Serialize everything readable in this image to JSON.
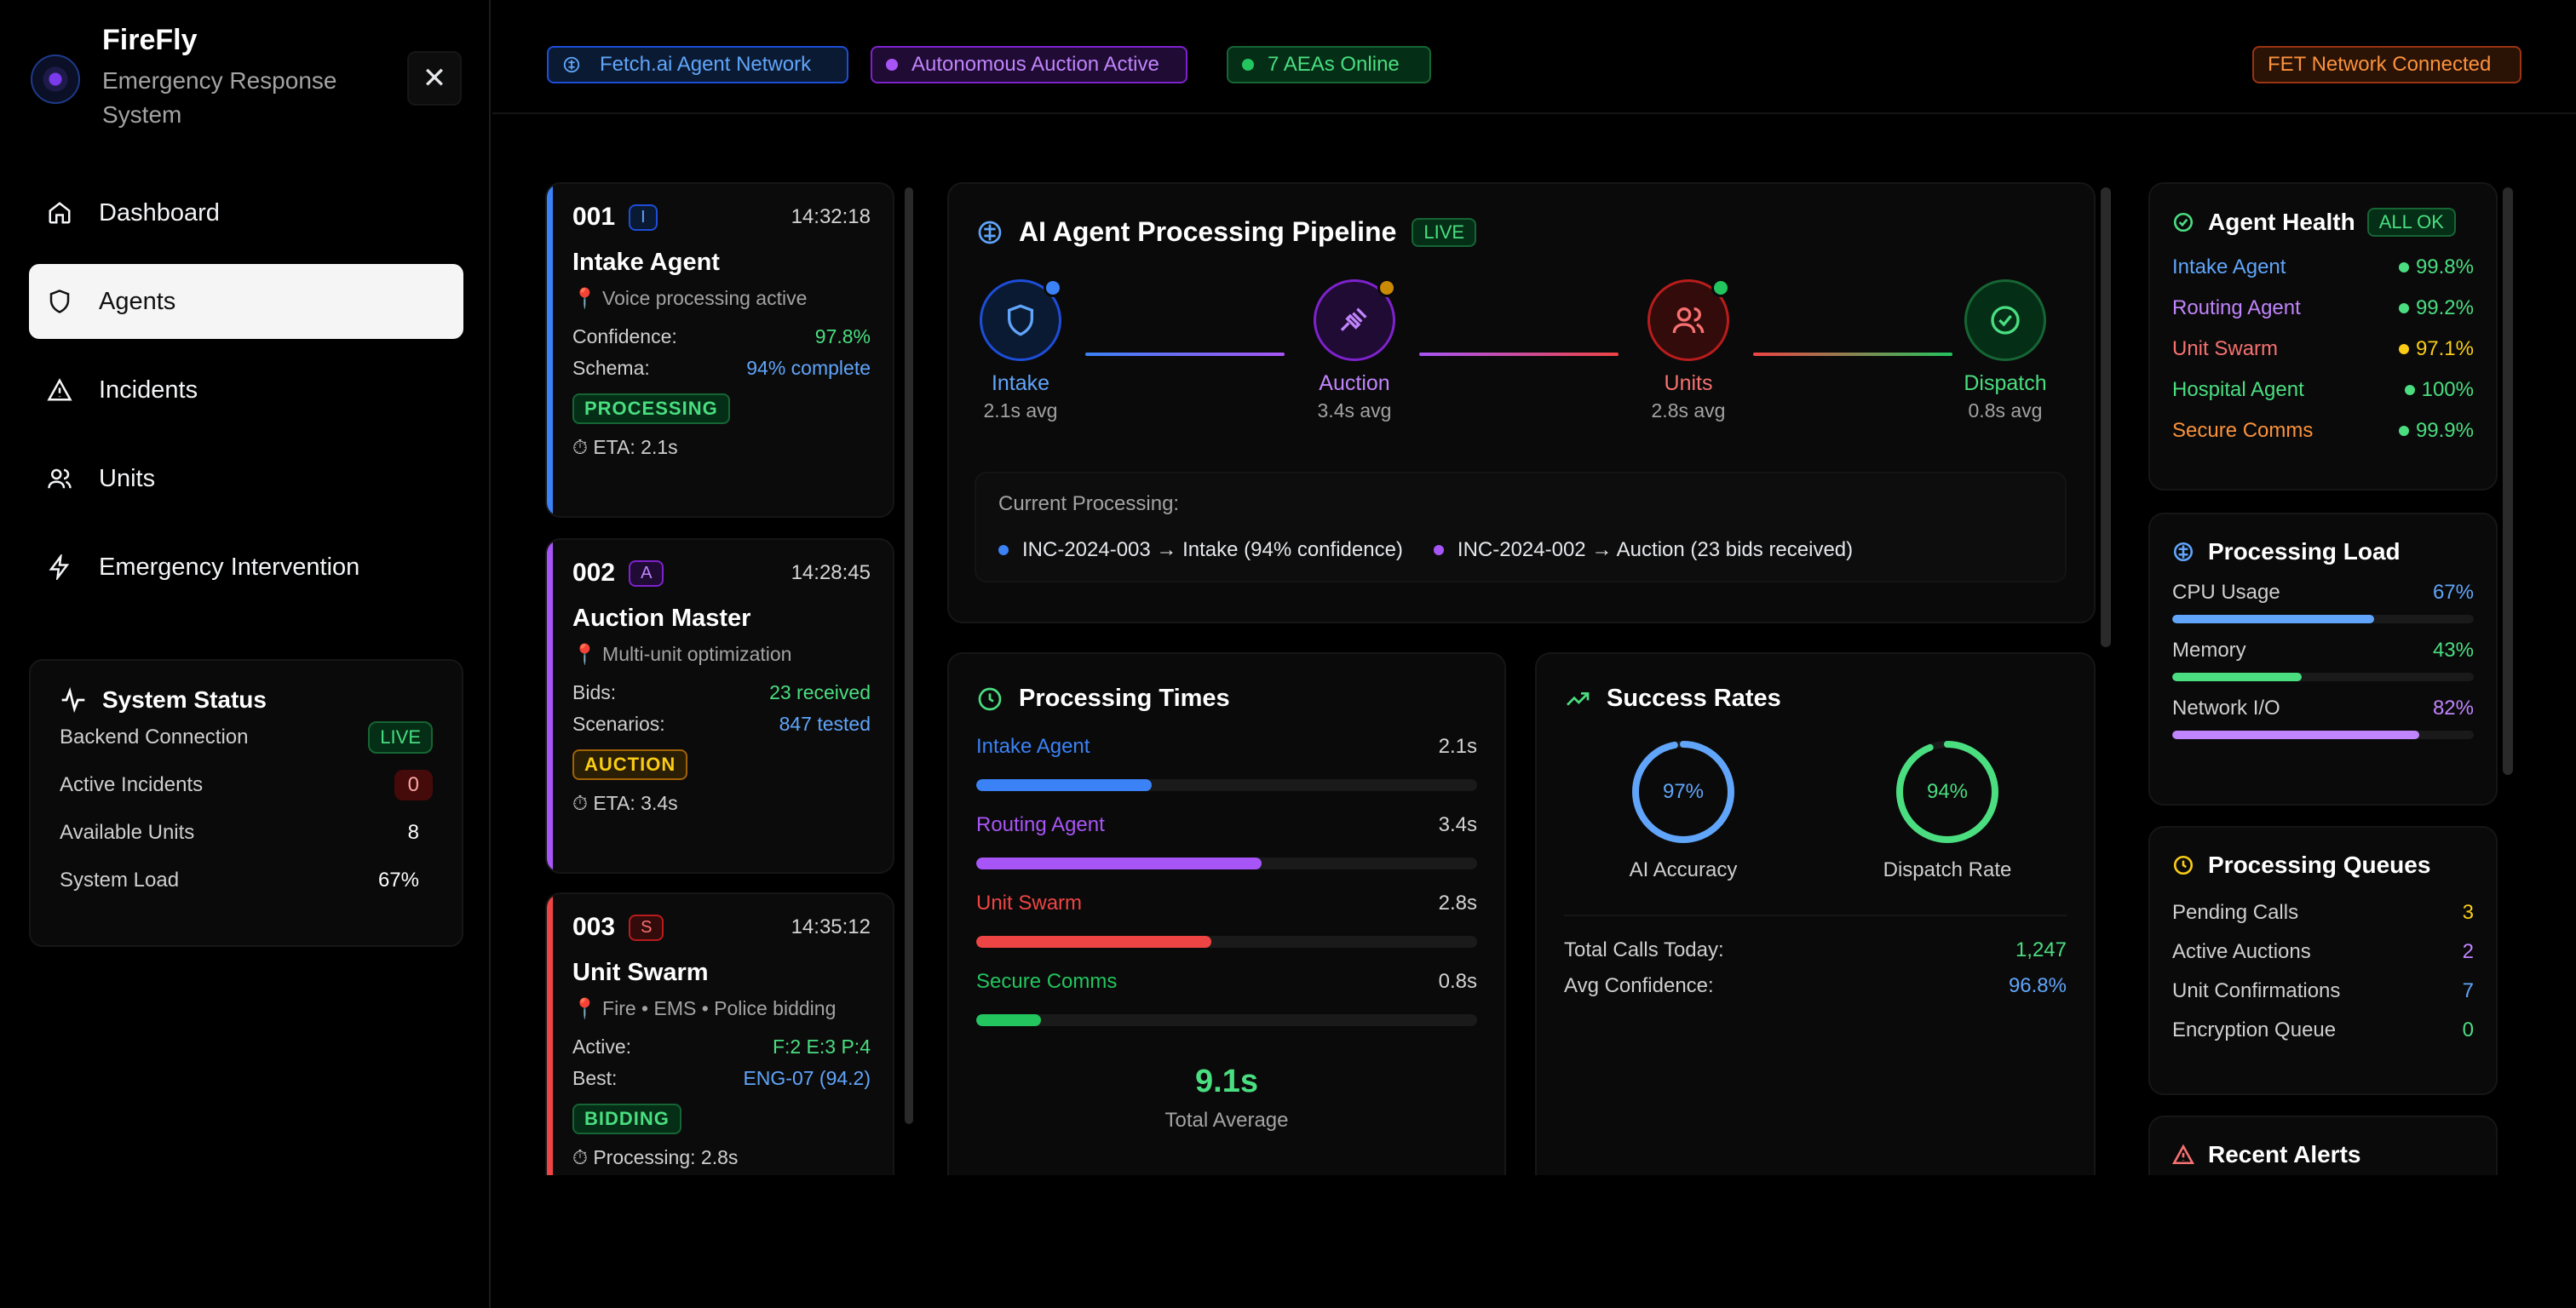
{
  "brand": {
    "title": "FireFly",
    "subtitle": "Emergency Response System"
  },
  "nav": [
    {
      "label": "Dashboard",
      "icon": "home-icon",
      "active": false
    },
    {
      "label": "Agents",
      "icon": "shield-icon",
      "active": true
    },
    {
      "label": "Incidents",
      "icon": "alert-triangle-icon",
      "active": false
    },
    {
      "label": "Units",
      "icon": "users-icon",
      "active": false
    },
    {
      "label": "Emergency Intervention",
      "icon": "zap-icon",
      "active": false
    }
  ],
  "system_status": {
    "title": "System Status",
    "rows": [
      {
        "label": "Backend Connection",
        "value": "LIVE"
      },
      {
        "label": "Active Incidents",
        "value": "0"
      },
      {
        "label": "Available Units",
        "value": "8"
      },
      {
        "label": "System Load",
        "value": "67%"
      }
    ]
  },
  "topbar": {
    "tags": [
      {
        "label": "Fetch.ai Agent Network",
        "color": "#60a5fa"
      },
      {
        "label": "Autonomous Auction Active",
        "color": "#c084fc"
      },
      {
        "label": "7 AEAs Online",
        "color": "#4ade80"
      }
    ],
    "network": "FET Network Connected"
  },
  "agents": [
    {
      "id": "001",
      "letter": "I",
      "time": "14:32:18",
      "name": "Intake Agent",
      "sub": "Voice processing active",
      "color": "#3b82f6",
      "rows": [
        {
          "label": "Confidence:",
          "value": "97.8%",
          "color": "#4ade80"
        },
        {
          "label": "Schema:",
          "value": "94% complete",
          "color": "#60a5fa"
        }
      ],
      "badge": "PROCESSING",
      "eta": "ETA: 2.1s"
    },
    {
      "id": "002",
      "letter": "A",
      "time": "14:28:45",
      "name": "Auction Master",
      "sub": "Multi-unit optimization",
      "color": "#a855f7",
      "rows": [
        {
          "label": "Bids:",
          "value": "23 received",
          "color": "#4ade80"
        },
        {
          "label": "Scenarios:",
          "value": "847 tested",
          "color": "#60a5fa"
        }
      ],
      "badge": "AUCTION",
      "eta": "ETA: 3.4s"
    },
    {
      "id": "003",
      "letter": "S",
      "time": "14:35:12",
      "name": "Unit Swarm",
      "sub": "Fire • EMS • Police bidding",
      "color": "#ef4444",
      "rows": [
        {
          "label": "Active:",
          "value": "F:2 E:3 P:4",
          "color": "#4ade80"
        },
        {
          "label": "Best:",
          "value": "ENG-07 (94.2)",
          "color": "#60a5fa"
        }
      ],
      "badge": "BIDDING",
      "eta": "Processing: 2.8s"
    }
  ],
  "pipeline": {
    "title": "AI Agent Processing Pipeline",
    "live": "LIVE",
    "stages": [
      {
        "name": "Intake",
        "avg": "2.1s avg",
        "color": "#3b82f6"
      },
      {
        "name": "Auction",
        "avg": "3.4s avg",
        "color": "#a855f7"
      },
      {
        "name": "Units",
        "avg": "2.8s avg",
        "color": "#ef4444"
      },
      {
        "name": "Dispatch",
        "avg": "0.8s avg",
        "color": "#22c55e"
      }
    ],
    "current_label": "Current Processing:",
    "current": [
      {
        "text": "INC-2024-003 → Intake (94% confidence)",
        "color": "#3b82f6"
      },
      {
        "text": "INC-2024-002 → Auction (23 bids received)",
        "color": "#a855f7"
      }
    ]
  },
  "processing_times": {
    "title": "Processing Times",
    "rows": [
      {
        "label": "Intake Agent",
        "value": "2.1s",
        "fraction": 0.35,
        "color": "#3b82f6"
      },
      {
        "label": "Routing Agent",
        "value": "3.4s",
        "fraction": 0.57,
        "color": "#a855f7"
      },
      {
        "label": "Unit Swarm",
        "value": "2.8s",
        "fraction": 0.47,
        "color": "#ef4444"
      },
      {
        "label": "Secure Comms",
        "value": "0.8s",
        "fraction": 0.13,
        "color": "#22c55e"
      }
    ],
    "total": "9.1s",
    "total_label": "Total Average"
  },
  "success_rates": {
    "title": "Success Rates",
    "rings": [
      {
        "value": "97%",
        "label": "AI Accuracy",
        "fraction": 0.97,
        "color": "#60a5fa"
      },
      {
        "value": "94%",
        "label": "Dispatch Rate",
        "fraction": 0.94,
        "color": "#4ade80"
      }
    ],
    "rows": [
      {
        "label": "Total Calls Today:",
        "value": "1,247",
        "color": "#4ade80"
      },
      {
        "label": "Avg Confidence:",
        "value": "96.8%",
        "color": "#60a5fa"
      }
    ]
  },
  "agent_health": {
    "title": "Agent Health",
    "badge": "ALL OK",
    "rows": [
      {
        "label": "Intake Agent",
        "value": "99.8%",
        "color": "#60a5fa",
        "dot": "#4ade80"
      },
      {
        "label": "Routing Agent",
        "value": "99.2%",
        "color": "#c084fc",
        "dot": "#4ade80"
      },
      {
        "label": "Unit Swarm",
        "value": "97.1%",
        "color": "#f87171",
        "dot": "#facc15"
      },
      {
        "label": "Hospital Agent",
        "value": "100%",
        "color": "#4ade80",
        "dot": "#4ade80"
      },
      {
        "label": "Secure Comms",
        "value": "99.9%",
        "color": "#fb923c",
        "dot": "#4ade80"
      }
    ]
  },
  "processing_load": {
    "title": "Processing Load",
    "rows": [
      {
        "label": "CPU Usage",
        "value": "67%",
        "fraction": 0.67,
        "color": "#60a5fa"
      },
      {
        "label": "Memory",
        "value": "43%",
        "fraction": 0.43,
        "color": "#4ade80"
      },
      {
        "label": "Network I/O",
        "value": "82%",
        "fraction": 0.82,
        "color": "#c084fc"
      }
    ]
  },
  "processing_queues": {
    "title": "Processing Queues",
    "rows": [
      {
        "label": "Pending Calls",
        "value": "3",
        "color": "#facc15"
      },
      {
        "label": "Active Auctions",
        "value": "2",
        "color": "#c084fc"
      },
      {
        "label": "Unit Confirmations",
        "value": "7",
        "color": "#60a5fa"
      },
      {
        "label": "Encryption Queue",
        "value": "0",
        "color": "#4ade80"
      }
    ]
  },
  "recent_alerts": {
    "title": "Recent Alerts"
  }
}
